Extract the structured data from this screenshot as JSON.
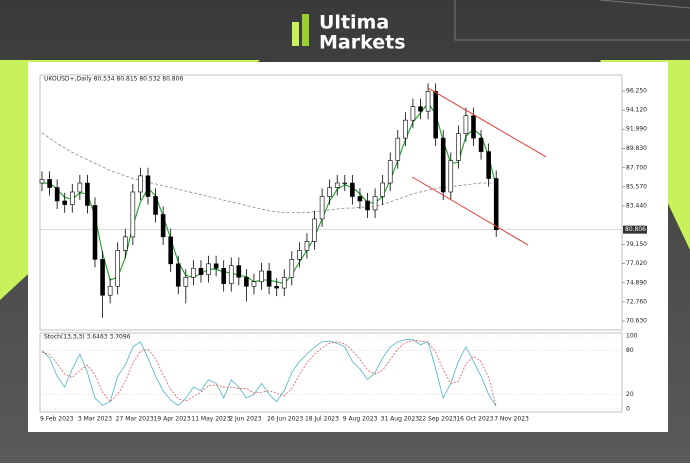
{
  "logo": {
    "line1": "Ultima",
    "line2": "Markets"
  },
  "chart_data": {
    "type": "candlestick",
    "title": "UKOUSD+,Daily  80.534 80.815 80.532 80.806",
    "categories": [
      "9 Feb 2023",
      null,
      null,
      null,
      null,
      "3 Mar 2023",
      null,
      null,
      null,
      null,
      "27 Mar 2023",
      null,
      null,
      null,
      null,
      "19 Apr 2023",
      null,
      null,
      null,
      null,
      "11 May 2023",
      null,
      null,
      null,
      null,
      "2 Jun 2023",
      null,
      null,
      null,
      null,
      "26 Jun 2023",
      null,
      null,
      null,
      null,
      "18 Jul 2023",
      null,
      null,
      null,
      null,
      "9 Aug 2023",
      null,
      null,
      null,
      null,
      "31 Aug 2023",
      null,
      null,
      null,
      null,
      "22 Sep 2023",
      null,
      null,
      null,
      null,
      "16 Oct 2023",
      null,
      null,
      null,
      null,
      "7 Nov 2023"
    ],
    "open": [
      86.0,
      86.4,
      85.5,
      84.0,
      83.6,
      85.0,
      86.0,
      83.5,
      77.5,
      73.5,
      74.5,
      78.5,
      80.0,
      85.0,
      86.8,
      84.5,
      82.5,
      80.0,
      77.0,
      74.5,
      75.5,
      76.5,
      75.8,
      77.0,
      76.5,
      74.8,
      76.8,
      75.5,
      74.5,
      75.0,
      76.2,
      74.5,
      74.3,
      75.5,
      77.5,
      78.5,
      79.5,
      82.0,
      84.5,
      85.5,
      86.0,
      86.0,
      84.5,
      84.0,
      83.0,
      84.5,
      86.0,
      88.5,
      91.0,
      93.0,
      94.5,
      94.0,
      96.2,
      91.0,
      85.0,
      88.5,
      91.5,
      93.5,
      91.0,
      89.5,
      86.5
    ],
    "high": [
      87.3,
      87.3,
      86.4,
      84.9,
      85.9,
      86.9,
      86.9,
      84.4,
      78.4,
      75.4,
      79.4,
      80.9,
      85.9,
      87.7,
      87.7,
      85.4,
      83.4,
      80.9,
      77.9,
      76.4,
      77.4,
      77.4,
      77.9,
      77.9,
      77.4,
      77.7,
      77.7,
      76.4,
      75.9,
      77.1,
      77.1,
      75.4,
      76.4,
      78.4,
      79.4,
      80.4,
      82.9,
      85.4,
      86.4,
      86.9,
      86.9,
      86.9,
      85.4,
      84.9,
      85.4,
      86.9,
      89.4,
      91.9,
      93.9,
      95.4,
      95.4,
      97.1,
      97.1,
      91.9,
      89.4,
      92.4,
      94.4,
      94.4,
      91.9,
      90.4,
      87.4
    ],
    "low": [
      85.1,
      84.6,
      83.1,
      82.7,
      82.7,
      84.1,
      82.6,
      76.6,
      71.0,
      72.6,
      73.6,
      77.6,
      79.1,
      84.1,
      83.6,
      81.6,
      79.1,
      76.1,
      73.6,
      72.6,
      74.6,
      74.9,
      74.9,
      75.6,
      73.9,
      73.9,
      74.6,
      72.8,
      73.6,
      74.1,
      73.6,
      73.4,
      73.4,
      74.6,
      76.6,
      77.6,
      78.6,
      81.1,
      83.6,
      84.6,
      85.1,
      83.6,
      83.1,
      82.1,
      82.1,
      83.6,
      85.1,
      87.6,
      90.1,
      92.1,
      93.1,
      93.1,
      90.1,
      84.1,
      84.1,
      87.6,
      90.6,
      90.1,
      88.6,
      85.6,
      80.0
    ],
    "close": [
      86.4,
      85.5,
      84.0,
      83.6,
      85.0,
      86.0,
      83.5,
      77.5,
      73.5,
      74.5,
      78.5,
      80.0,
      85.0,
      86.8,
      84.5,
      82.5,
      80.0,
      77.0,
      74.5,
      75.5,
      76.5,
      75.8,
      77.0,
      76.5,
      74.8,
      76.8,
      75.5,
      74.5,
      75.0,
      76.2,
      74.5,
      74.3,
      75.5,
      77.5,
      78.5,
      79.5,
      82.0,
      84.5,
      85.5,
      86.0,
      86.0,
      84.5,
      84.0,
      83.0,
      84.5,
      86.0,
      88.5,
      91.0,
      93.0,
      94.5,
      94.0,
      96.2,
      91.0,
      85.0,
      88.5,
      91.5,
      93.5,
      91.0,
      89.5,
      86.5,
      80.8
    ],
    "up_color": "#ffffff",
    "down_color": "#000000",
    "ylim": [
      69.63,
      98.03
    ],
    "yticks": [
      {
        "value": 70.63,
        "label": "70.630"
      },
      {
        "value": 72.76,
        "label": "72.760"
      },
      {
        "value": 74.89,
        "label": "74.890"
      },
      {
        "value": 77.02,
        "label": "77.020"
      },
      {
        "value": 79.15,
        "label": "79.150"
      },
      {
        "value": 83.44,
        "label": "83.440"
      },
      {
        "value": 85.57,
        "label": "85.570"
      },
      {
        "value": 87.7,
        "label": "87.700"
      },
      {
        "value": 89.83,
        "label": "89.830"
      },
      {
        "value": 91.99,
        "label": "91.990"
      },
      {
        "value": 94.12,
        "label": "94.120"
      },
      {
        "value": 96.25,
        "label": "96.250"
      }
    ],
    "last_price": 80.806,
    "lines": [
      {
        "color": "#1f9d2a",
        "dash": false,
        "values": [
          86.0,
          86.0,
          85.3,
          84.4,
          84.2,
          84.9,
          84.8,
          82.3,
          78.2,
          75.2,
          75.5,
          77.7,
          81.2,
          83.9,
          85.4,
          84.6,
          82.3,
          79.8,
          77.2,
          75.7,
          75.5,
          75.9,
          76.4,
          76.4,
          76.1,
          76.0,
          75.7,
          75.6,
          75.0,
          75.2,
          75.2,
          75.0,
          74.8,
          75.8,
          77.2,
          78.5,
          80.0,
          82.0,
          84.0,
          85.3,
          85.8,
          85.5,
          84.8,
          83.8,
          83.8,
          84.5,
          86.3,
          88.5,
          90.8,
          92.8,
          93.8,
          94.9,
          93.7,
          90.7,
          88.2,
          88.3,
          91.2,
          92.0,
          91.3,
          89.0,
          85.6
        ]
      },
      {
        "color": "#8a8a8a",
        "dash": true,
        "values": [
          91.6,
          91.0,
          90.4,
          89.9,
          89.4,
          89.0,
          88.6,
          88.2,
          87.8,
          87.4,
          87.1,
          86.8,
          86.5,
          86.3,
          86.1,
          85.9,
          85.7,
          85.5,
          85.3,
          85.1,
          84.9,
          84.7,
          84.5,
          84.3,
          84.1,
          83.9,
          83.7,
          83.5,
          83.3,
          83.1,
          82.9,
          82.8,
          82.7,
          82.7,
          82.7,
          82.7,
          82.8,
          82.9,
          83.0,
          83.1,
          83.2,
          83.2,
          83.3,
          83.3,
          83.4,
          83.6,
          83.9,
          84.2,
          84.5,
          84.8,
          85.0,
          85.2,
          85.4,
          85.5,
          85.6,
          85.7,
          85.8,
          85.9,
          86.0,
          86.0,
          86.0
        ]
      }
    ],
    "trend_lines": [
      {
        "color": "#e53935",
        "x": [
          51.0,
          66.6
        ],
        "y": [
          96.58,
          88.9
        ]
      },
      {
        "color": "#e53935",
        "x": [
          48.9,
          64.2
        ],
        "y": [
          86.67,
          79.1
        ]
      }
    ],
    "indicator": {
      "title": "Stoch(13,3,3) 3.6463 3.7096",
      "ylim": [
        0,
        100
      ],
      "yticks": [
        0,
        20,
        80,
        100
      ],
      "grid": true,
      "series": [
        {
          "color": "#4fb3c8",
          "dash": false,
          "values": [
            80,
            70,
            45,
            30,
            55,
            75,
            50,
            15,
            5,
            10,
            45,
            60,
            85,
            92,
            70,
            45,
            25,
            12,
            5,
            15,
            30,
            25,
            40,
            35,
            15,
            40,
            30,
            15,
            20,
            35,
            20,
            10,
            25,
            50,
            65,
            75,
            85,
            92,
            93,
            90,
            85,
            65,
            55,
            40,
            50,
            70,
            85,
            92,
            95,
            95,
            88,
            92,
            55,
            15,
            35,
            65,
            85,
            65,
            45,
            20,
            3.6463
          ]
        },
        {
          "color": "#e05a5a",
          "dash": true,
          "values": [
            78,
            75,
            62,
            48,
            43,
            53,
            60,
            47,
            23,
            10,
            20,
            38,
            63,
            79,
            82,
            69,
            47,
            27,
            14,
            11,
            17,
            23,
            32,
            33,
            30,
            30,
            28,
            28,
            22,
            23,
            25,
            22,
            18,
            28,
            47,
            63,
            75,
            84,
            90,
            92,
            89,
            80,
            68,
            53,
            48,
            53,
            68,
            82,
            91,
            94,
            93,
            92,
            78,
            54,
            35,
            38,
            62,
            72,
            65,
            43,
            3.7096
          ]
        }
      ]
    }
  }
}
